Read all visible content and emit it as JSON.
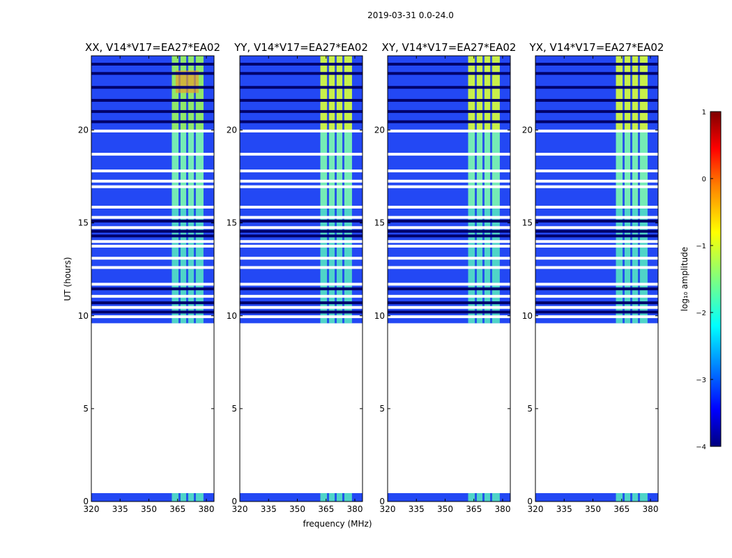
{
  "chart_data": {
    "type": "heatmap",
    "title": "2019-03-31 0.0-24.0",
    "xlabel": "frequency (MHz)",
    "ylabel": "UT (hours)",
    "xlim": [
      320,
      384
    ],
    "ylim": [
      0,
      24
    ],
    "xticks": [
      320,
      335,
      350,
      365,
      380
    ],
    "yticks": [
      0,
      5,
      10,
      15,
      20
    ],
    "panels": [
      {
        "title": "XX, V14*V17=EA27*EA02"
      },
      {
        "title": "YY, V14*V17=EA27*EA02"
      },
      {
        "title": "XY, V14*V17=EA27*EA02"
      },
      {
        "title": "YX, V14*V17=EA27*EA02"
      }
    ],
    "data_time_ranges_hours": [
      [
        0.0,
        0.45
      ],
      [
        9.6,
        24.0
      ]
    ],
    "blank_time_rows_hours": [
      19.95,
      18.7,
      17.8,
      17.25,
      16.95,
      15.85,
      15.3,
      14.75,
      14.0,
      13.75,
      13.1,
      12.6,
      11.7,
      11.05,
      10.45,
      9.95
    ],
    "dark_time_rows_hours": [
      23.55,
      23.05,
      22.3,
      21.6,
      21.0,
      20.45,
      15.1,
      14.55,
      14.3,
      11.45,
      10.7,
      10.2
    ],
    "colorbar": {
      "label": "log₁₀ amplitude",
      "range": [
        -4,
        1
      ],
      "ticks": [
        "1",
        "0",
        "−1",
        "−2",
        "−3",
        "−4"
      ],
      "colormap": [
        "#00007f",
        "#0000ff",
        "#00ffff",
        "#7fff7f",
        "#ffff00",
        "#ff7f00",
        "#ff0000",
        "#7f0000"
      ]
    }
  }
}
